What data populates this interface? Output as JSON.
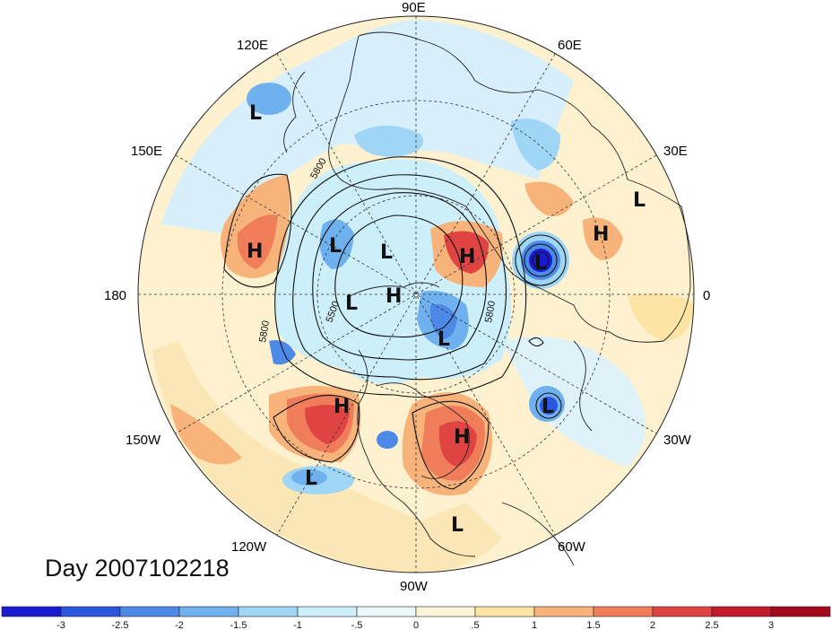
{
  "map": {
    "lon_labels": {
      "e90": "90E",
      "e60": "60E",
      "e30": "30E",
      "zero": "0",
      "w30": "30W",
      "w60": "60W",
      "w90": "90W",
      "w120": "120W",
      "w150": "150W",
      "d180": "180",
      "e150": "150E",
      "e120": "120E"
    },
    "contour_labels": [
      "5800",
      "5500",
      "5800",
      "5800"
    ],
    "centers": [
      {
        "name": "low-120e",
        "text": "L"
      },
      {
        "name": "low-30e-upper",
        "text": "L"
      },
      {
        "name": "high-160e",
        "text": "H"
      },
      {
        "name": "low-siberia",
        "text": "L"
      },
      {
        "name": "low-arctic",
        "text": "L"
      },
      {
        "name": "high-pole",
        "text": "H"
      },
      {
        "name": "low-canada-west",
        "text": "L"
      },
      {
        "name": "high-europe",
        "text": "H"
      },
      {
        "name": "low-europe",
        "text": "L"
      },
      {
        "name": "high-russia",
        "text": "H"
      },
      {
        "name": "low-hudson",
        "text": "L"
      },
      {
        "name": "high-pacific",
        "text": "H"
      },
      {
        "name": "high-atlantic",
        "text": "H"
      },
      {
        "name": "low-atlantic",
        "text": "L"
      },
      {
        "name": "low-pacific-south",
        "text": "L"
      },
      {
        "name": "low-caribbean",
        "text": "L"
      }
    ]
  },
  "day_label": "Day 2007102218",
  "colorbar": {
    "ticks": [
      "-3",
      "-2.5",
      "-2",
      "-1.5",
      "-1",
      "-.5",
      "0",
      ".5",
      "1",
      "1.5",
      "2",
      "2.5",
      "3"
    ],
    "colors": [
      "#1a1ad0",
      "#2b56e0",
      "#4d8ae8",
      "#6fb0ee",
      "#9fd6f5",
      "#cdeffa",
      "#e9f7fb",
      "#fdf5d8",
      "#fde3a4",
      "#f7b37a",
      "#ef7d5a",
      "#e04442",
      "#c21a2c",
      "#a3091c"
    ]
  }
}
